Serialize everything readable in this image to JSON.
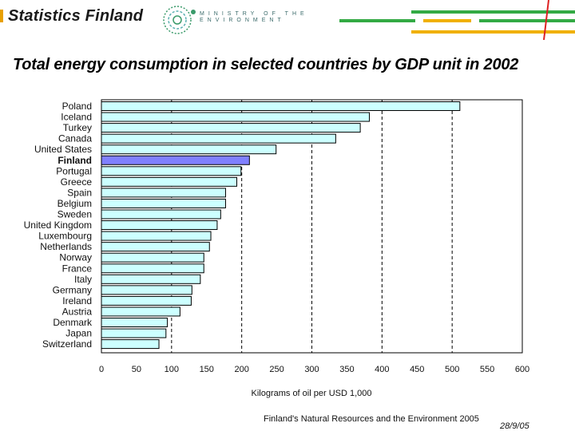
{
  "header": {
    "logo_text": "Statistics Finland",
    "ministry_text_line1": "MINISTRY OF THE",
    "ministry_text_line2": "ENVIRONMENT"
  },
  "footer": {
    "source": "Finland's Natural Resources and the Environment 2005",
    "date": "28/9/05"
  },
  "colors": {
    "bar": "#ccffff",
    "highlight": "#8080ff",
    "stripe_green": "#33aa44",
    "stripe_yellow": "#f0b000",
    "stripe_red": "#dd2222"
  },
  "chart_data": {
    "type": "bar",
    "orientation": "horizontal",
    "title": "Total energy consumption in selected countries by GDP unit in 2002",
    "xlabel": "Kilograms of oil per USD 1,000",
    "ylabel": "",
    "xlim": [
      0,
      600
    ],
    "xticks": [
      0,
      50,
      100,
      150,
      200,
      250,
      300,
      350,
      400,
      450,
      500,
      550,
      600
    ],
    "highlight": "Finland",
    "categories": [
      "Poland",
      "Iceland",
      "Turkey",
      "Canada",
      "United States",
      "Finland",
      "Portugal",
      "Greece",
      "Spain",
      "Belgium",
      "Sweden",
      "United Kingdom",
      "Luxembourg",
      "Netherlands",
      "Norway",
      "France",
      "Italy",
      "Germany",
      "Ireland",
      "Austria",
      "Denmark",
      "Japan",
      "Switzerland"
    ],
    "values": [
      511,
      382,
      369,
      334,
      249,
      211,
      199,
      193,
      177,
      177,
      170,
      165,
      156,
      154,
      146,
      146,
      141,
      129,
      128,
      112,
      94,
      92,
      82
    ]
  }
}
